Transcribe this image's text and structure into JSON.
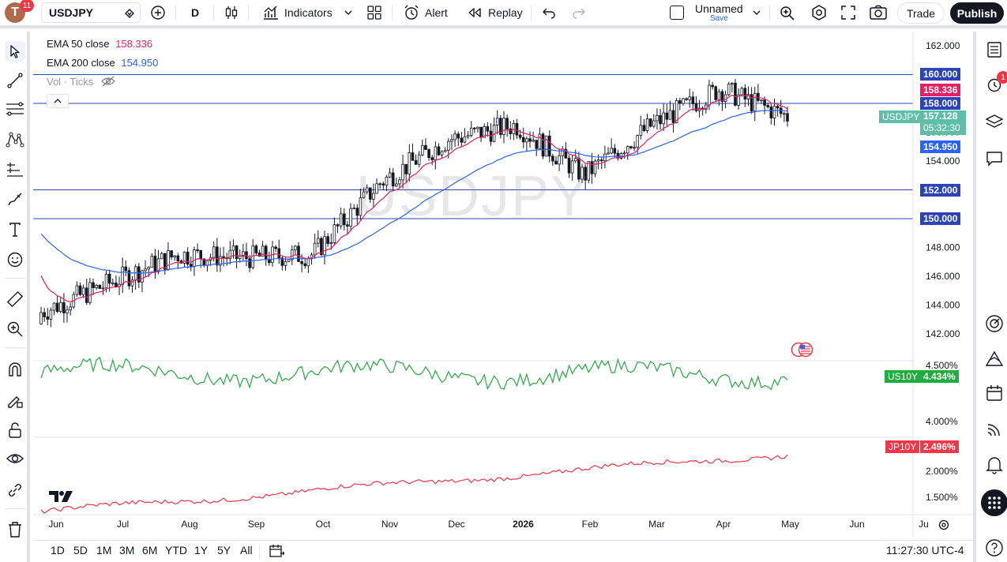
{
  "header": {
    "avatar_letter": "T",
    "avatar_badge": "11",
    "symbol": "USDJPY",
    "interval": "D",
    "indicators_label": "Indicators",
    "alert_label": "Alert",
    "replay_label": "Replay",
    "layout_name": "Unnamed",
    "layout_save": "Save",
    "trade_label": "Trade",
    "publish_label": "Publish"
  },
  "legend": {
    "ema50_label": "EMA 50 close",
    "ema50_value": "158.336",
    "ema200_label": "EMA 200 close",
    "ema200_value": "154.950",
    "vol_label": "Vol · Ticks"
  },
  "watermark": "USDJPY",
  "price_tags": {
    "l160": "160.000",
    "ema50": "158.336",
    "l158": "158.000",
    "symbol": "USDJPY",
    "last": "157.128",
    "countdown": "05:32:30",
    "ema200": "154.950",
    "l152": "152.000",
    "l150": "150.000"
  },
  "price_axis": [
    "162.000",
    "156.000",
    "154.000",
    "148.000",
    "146.000",
    "144.000",
    "142.000"
  ],
  "us10y": {
    "label": "US10Y",
    "value": "4.434%",
    "axis": [
      "4.500%",
      "4.000%"
    ]
  },
  "jp10y": {
    "label": "JP10Y",
    "value": "2.496%",
    "axis": [
      "2.000%",
      "1.500%"
    ]
  },
  "time_axis": [
    "Jun",
    "Jul",
    "Aug",
    "Sep",
    "Oct",
    "Nov",
    "Dec",
    "2026",
    "Feb",
    "Mar",
    "Apr",
    "May",
    "Jun",
    "Ju"
  ],
  "ranges": [
    "1D",
    "5D",
    "1M",
    "3M",
    "6M",
    "YTD",
    "1Y",
    "5Y",
    "All"
  ],
  "clock": "11:27:30 UTC-4",
  "alerts_badge": "1",
  "colors": {
    "up": "#131722",
    "ema50": "#e91e63",
    "ema200": "#2962ff",
    "us10y": "#22ab3e",
    "jp10y": "#f23645",
    "hline": "#2a43b8",
    "accent": "#2962ff"
  },
  "chart_data": [
    {
      "type": "candlestick",
      "title": "USDJPY",
      "ylim": [
        141,
        163
      ],
      "horizontal_levels": [
        160,
        158,
        152,
        150
      ],
      "approx_close_path": {
        "months": [
          "Jun",
          "Jul",
          "Aug",
          "Sep",
          "Oct",
          "Nov",
          "Dec",
          "2026",
          "Feb",
          "Mar",
          "Apr",
          "May"
        ],
        "close": [
          143.5,
          145.5,
          147.5,
          147.3,
          147.5,
          152.5,
          155.5,
          156.5,
          153.0,
          156.5,
          159.0,
          157.1
        ]
      },
      "series": [
        {
          "name": "EMA 50 close",
          "last": 158.336
        },
        {
          "name": "EMA 200 close",
          "last": 154.95
        }
      ]
    },
    {
      "type": "line",
      "series": [
        {
          "name": "US10Y",
          "last": 4.434
        }
      ],
      "ylim": [
        3.9,
        4.55
      ]
    },
    {
      "type": "line",
      "series": [
        {
          "name": "JP10Y",
          "last": 2.496
        }
      ],
      "ylim": [
        1.4,
        2.8
      ]
    }
  ]
}
